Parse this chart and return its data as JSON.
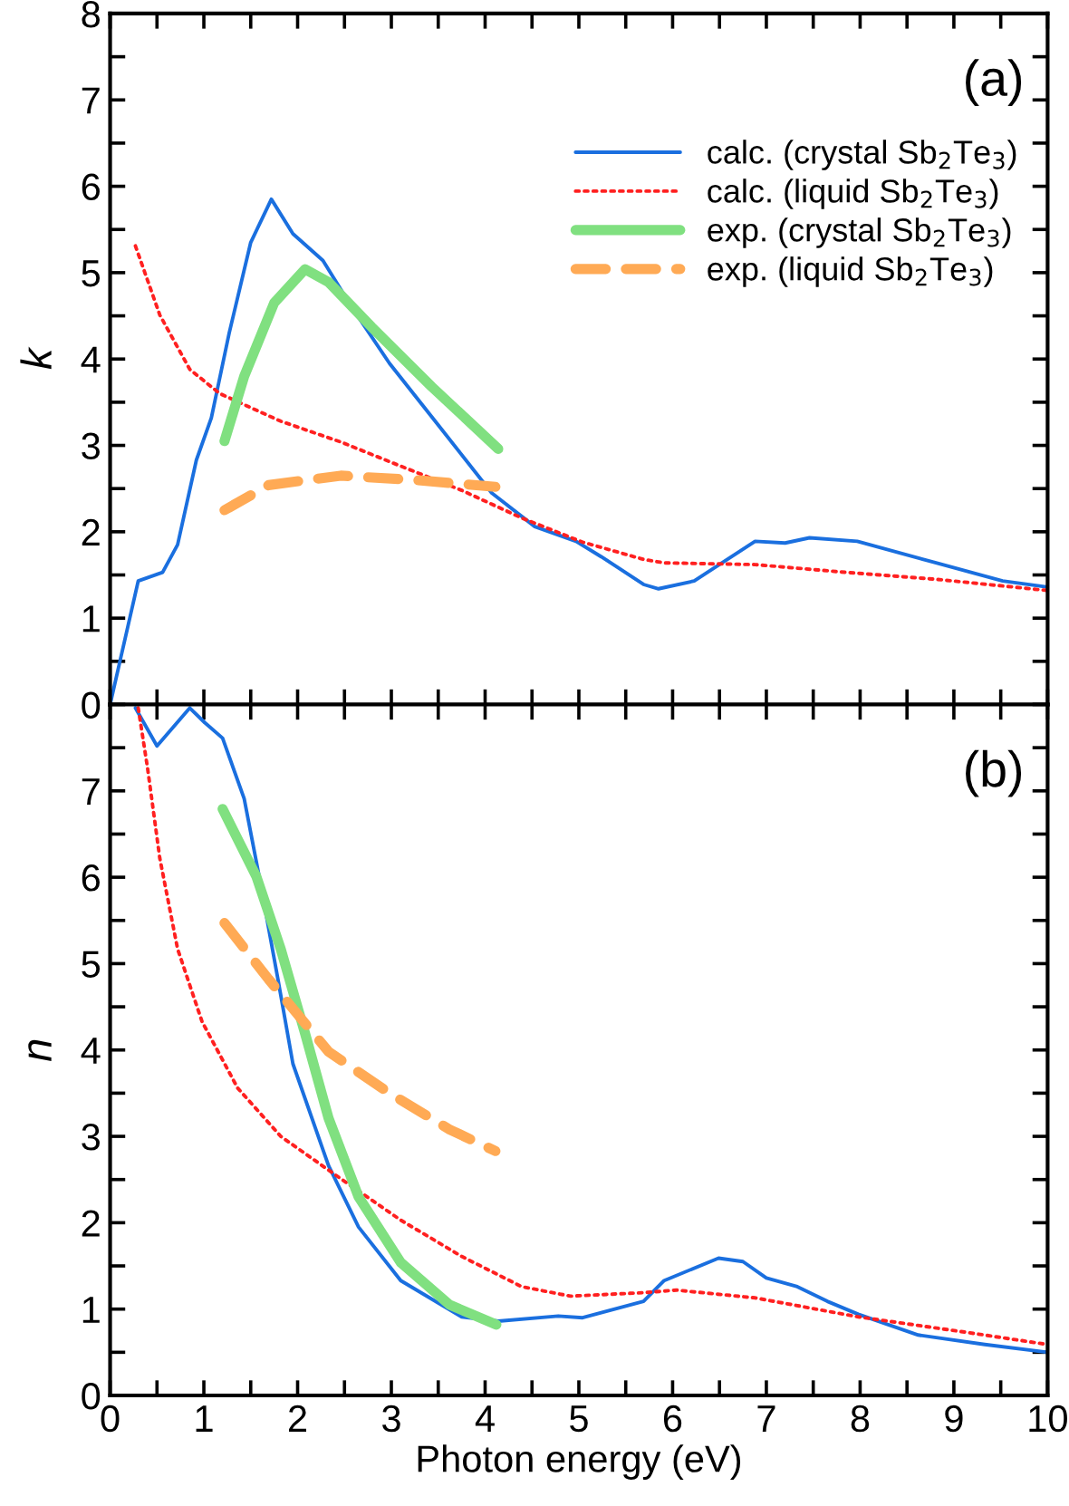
{
  "chart_data": [
    {
      "type": "line",
      "ylabel": "k",
      "xlim": [
        0,
        10
      ],
      "ylim": [
        0,
        8
      ],
      "tick_labels": "y",
      "grid": false,
      "legend": "top right",
      "annotations": [
        "(a)"
      ],
      "xticks": [
        0,
        {
          "value": 0.5,
          "label": null
        },
        1,
        {
          "value": 1.5,
          "label": null
        },
        2,
        {
          "value": 2.5,
          "label": null
        },
        3,
        {
          "value": 3.5,
          "label": null
        },
        4,
        {
          "value": 4.5,
          "label": null
        },
        5,
        {
          "value": 5.5,
          "label": null
        },
        6,
        {
          "value": 6.5,
          "label": null
        },
        7,
        {
          "value": 7.5,
          "label": null
        },
        8,
        {
          "value": 8.5,
          "label": null
        },
        9,
        {
          "value": 9.5,
          "label": null
        },
        10
      ],
      "yticks": [
        0,
        {
          "value": 0.5,
          "label": null
        },
        1,
        {
          "value": 1.5,
          "label": null
        },
        2,
        {
          "value": 2.5,
          "label": null
        },
        3,
        {
          "value": 3.5,
          "label": null
        },
        4,
        {
          "value": 4.5,
          "label": null
        },
        5,
        {
          "value": 5.5,
          "label": null
        },
        6,
        {
          "value": 6.5,
          "label": null
        },
        7,
        {
          "value": 7.5,
          "label": null
        },
        8
      ],
      "series": [
        {
          "name": "calc. (crystal Sb$_{2}$Te$_{3}$)",
          "color": "#1a6fdf",
          "line_style": "solid",
          "x": [
            0,
            0.3,
            0.56,
            0.72,
            0.92,
            1.08,
            1.27,
            1.5,
            1.72,
            1.95,
            2.27,
            2.59,
            2.98,
            3.49,
            4.07,
            4.53,
            4.97,
            5.24,
            5.69,
            5.85,
            6.23,
            6.88,
            7.2,
            7.46,
            7.97,
            8.81,
            9.52,
            10
          ],
          "values": [
            0,
            1.43,
            1.53,
            1.85,
            2.83,
            3.32,
            4.3,
            5.35,
            5.85,
            5.45,
            5.14,
            4.58,
            3.95,
            3.25,
            2.45,
            2.06,
            1.89,
            1.71,
            1.39,
            1.34,
            1.43,
            1.89,
            1.87,
            1.93,
            1.89,
            1.64,
            1.43,
            1.36
          ]
        },
        {
          "name": "calc. (liquid Sb$_{2}$Te$_{3}$)",
          "color": "#ff2020",
          "line_style": "dotted",
          "x": [
            0.27,
            0.53,
            0.85,
            1.17,
            1.82,
            2.46,
            3.1,
            3.75,
            4.39,
            5.04,
            5.69,
            5.91,
            6.88,
            7.85,
            8.81,
            10
          ],
          "values": [
            5.31,
            4.51,
            3.88,
            3.6,
            3.28,
            3.04,
            2.76,
            2.48,
            2.16,
            1.88,
            1.68,
            1.64,
            1.62,
            1.53,
            1.45,
            1.32
          ]
        },
        {
          "name": "exp. (crystal Sb$_{2}$Te$_{3}$)",
          "color": "#80e080",
          "line_style": "solid",
          "x": [
            1.22,
            1.43,
            1.75,
            2.08,
            2.33,
            2.79,
            3.43,
            4.14
          ],
          "values": [
            3.05,
            3.8,
            4.65,
            5.04,
            4.89,
            4.37,
            3.68,
            2.96
          ]
        },
        {
          "name": "exp. (liquid Sb$_{2}$Te$_{3}$)",
          "color": "#ffaa55",
          "line_style": "dashed",
          "x": [
            1.22,
            1.69,
            2.46,
            3.24,
            4.11
          ],
          "values": [
            2.25,
            2.54,
            2.65,
            2.6,
            2.52
          ]
        }
      ]
    },
    {
      "type": "line",
      "ylabel": "n",
      "xlabel": "Photon energy (eV)",
      "xlim": [
        0,
        10
      ],
      "ylim": [
        0,
        8
      ],
      "grid": false,
      "legend": false,
      "annotations": [
        "(b)"
      ],
      "xticks": [
        0,
        {
          "value": 0.5,
          "label": null
        },
        1,
        {
          "value": 1.5,
          "label": null
        },
        2,
        {
          "value": 2.5,
          "label": null
        },
        3,
        {
          "value": 3.5,
          "label": null
        },
        4,
        {
          "value": 4.5,
          "label": null
        },
        5,
        {
          "value": 5.5,
          "label": null
        },
        6,
        {
          "value": 6.5,
          "label": null
        },
        7,
        {
          "value": 7.5,
          "label": null
        },
        8,
        {
          "value": 8.5,
          "label": null
        },
        9,
        {
          "value": 9.5,
          "label": null
        },
        10
      ],
      "yticks": [
        0,
        {
          "value": 0.5,
          "label": null
        },
        1,
        {
          "value": 1.5,
          "label": null
        },
        2,
        {
          "value": 2.5,
          "label": null
        },
        3,
        {
          "value": 3.5,
          "label": null
        },
        4,
        {
          "value": 4.5,
          "label": null
        },
        5,
        {
          "value": 5.5,
          "label": null
        },
        6,
        {
          "value": 6.5,
          "label": null
        },
        7,
        {
          "value": 7.5,
          "label": null
        },
        {
          "value": 8,
          "label": null
        }
      ],
      "series": [
        {
          "color": "#1a6fdf",
          "line_style": "solid",
          "x": [
            0.27,
            0.5,
            0.85,
            1.01,
            1.2,
            1.43,
            1.59,
            1.79,
            1.95,
            2.33,
            2.65,
            3.1,
            3.75,
            4.14,
            4.78,
            5.04,
            5.69,
            5.91,
            6.49,
            6.75,
            7.0,
            7.33,
            7.65,
            7.98,
            8.62,
            9.33,
            10
          ],
          "values": [
            7.96,
            7.52,
            7.96,
            7.79,
            7.61,
            6.91,
            6.01,
            4.82,
            3.84,
            2.66,
            1.95,
            1.33,
            0.91,
            0.86,
            0.92,
            0.9,
            1.09,
            1.33,
            1.59,
            1.55,
            1.36,
            1.26,
            1.09,
            0.94,
            0.7,
            0.59,
            0.5
          ]
        },
        {
          "color": "#ff2020",
          "line_style": "dotted",
          "x": [
            0.3,
            0.4,
            0.53,
            0.72,
            0.98,
            1.36,
            1.82,
            2.46,
            3.1,
            3.75,
            4.39,
            4.91,
            5.69,
            6.04,
            6.88,
            7.98,
            9.14,
            10
          ],
          "values": [
            7.96,
            7.26,
            6.22,
            5.17,
            4.33,
            3.56,
            3.0,
            2.51,
            2.03,
            1.61,
            1.26,
            1.15,
            1.19,
            1.22,
            1.13,
            0.91,
            0.73,
            0.59
          ]
        },
        {
          "color": "#80e080",
          "line_style": "solid",
          "x": [
            1.2,
            1.56,
            1.82,
            2.08,
            2.33,
            2.65,
            3.1,
            3.62,
            4.12
          ],
          "values": [
            6.79,
            6.01,
            5.17,
            4.19,
            3.21,
            2.3,
            1.54,
            1.05,
            0.82
          ]
        },
        {
          "color": "#ffaa55",
          "line_style": "dashed",
          "x": [
            1.22,
            1.69,
            2.33,
            2.98,
            3.62,
            4.11
          ],
          "values": [
            5.47,
            4.82,
            3.98,
            3.5,
            3.08,
            2.83
          ]
        }
      ]
    }
  ]
}
